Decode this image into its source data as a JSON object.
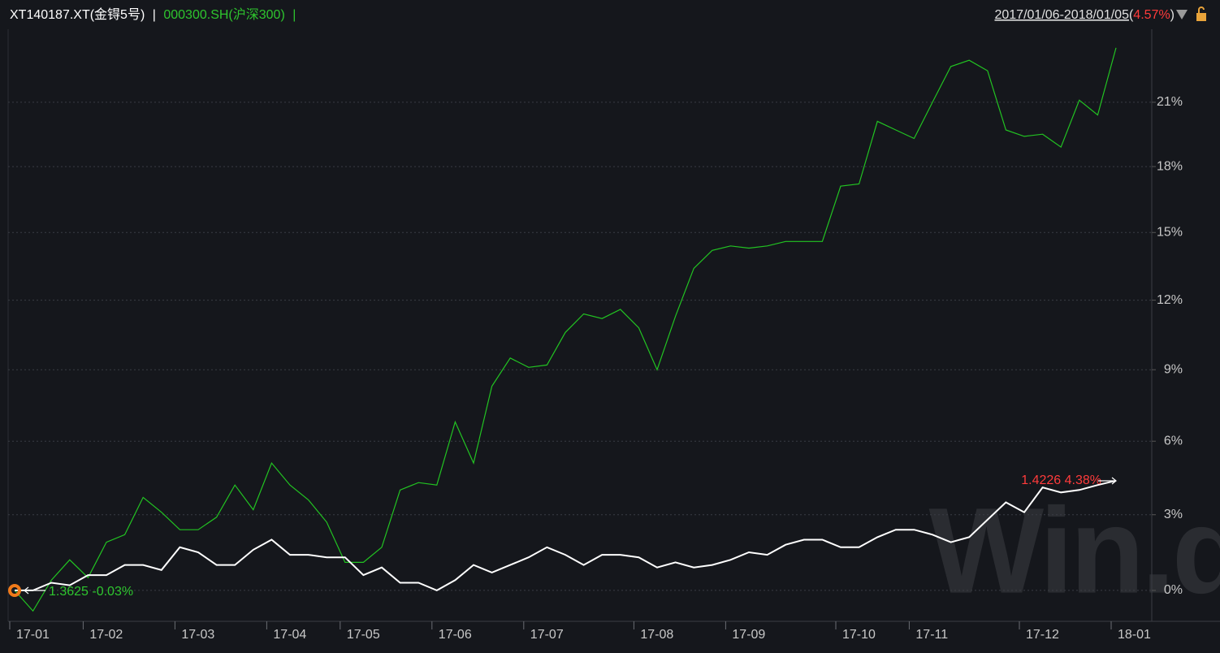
{
  "chart_data": {
    "type": "line",
    "separator": "|",
    "period": "2017/01/06-2018/01/05",
    "paren_open": "(",
    "paren_close": ")",
    "change": "4.57%",
    "watermark": "Win.d",
    "start_label": "1.3625 -0.03%",
    "end_label": "1.4226 4.38%",
    "log_scale": true,
    "grid": true,
    "categories": [
      "17-01",
      null,
      null,
      null,
      "17-02",
      null,
      null,
      null,
      null,
      "17-03",
      null,
      null,
      null,
      null,
      "17-04",
      null,
      null,
      null,
      "17-05",
      null,
      null,
      null,
      null,
      "17-06",
      null,
      null,
      null,
      null,
      "17-07",
      null,
      null,
      null,
      null,
      null,
      "17-08",
      null,
      null,
      null,
      null,
      "17-09",
      null,
      null,
      null,
      null,
      null,
      "17-10",
      null,
      null,
      null,
      "17-11",
      null,
      null,
      null,
      null,
      null,
      "17-12",
      null,
      null,
      null,
      null,
      "18-01"
    ],
    "series": [
      {
        "name": "XT140187.XT(金锝5号)",
        "color": "#ffffff",
        "values": [
          0,
          0.0,
          0.3,
          0.2,
          0.6,
          0.6,
          1.0,
          1.0,
          0.8,
          1.7,
          1.5,
          1.0,
          1.0,
          1.6,
          2.0,
          1.4,
          1.4,
          1.3,
          1.3,
          0.6,
          0.9,
          0.3,
          0.3,
          0.0,
          0.4,
          1.0,
          0.7,
          1.0,
          1.3,
          1.7,
          1.4,
          1.0,
          1.4,
          1.4,
          1.3,
          0.9,
          1.1,
          0.9,
          1.0,
          1.2,
          1.5,
          1.4,
          1.8,
          2.0,
          2.0,
          1.7,
          1.7,
          2.1,
          2.4,
          2.4,
          2.2,
          1.9,
          2.1,
          2.8,
          3.5,
          3.1,
          4.1,
          3.9,
          4.0,
          4.2,
          4.38
        ]
      },
      {
        "name": "000300.SH(沪深300)",
        "color": "#22c322",
        "values": [
          0,
          -0.8,
          0.4,
          1.2,
          0.5,
          1.9,
          2.2,
          3.7,
          3.1,
          2.4,
          2.4,
          2.9,
          4.2,
          3.2,
          5.1,
          4.2,
          3.6,
          2.7,
          1.1,
          1.1,
          1.7,
          4.0,
          4.3,
          4.2,
          6.8,
          5.1,
          8.3,
          9.5,
          9.1,
          9.2,
          10.6,
          11.4,
          11.2,
          11.6,
          10.8,
          9.0,
          11.3,
          13.4,
          14.2,
          14.4,
          14.3,
          14.4,
          14.6,
          14.6,
          14.6,
          17.1,
          17.2,
          20.1,
          19.7,
          19.3,
          21.0,
          22.7,
          23.0,
          22.5,
          19.7,
          19.4,
          19.5,
          18.9,
          21.1,
          20.4,
          23.6
        ]
      }
    ],
    "ylim": [
      -1.2,
      24.5
    ],
    "yticks": [
      {
        "value": 0,
        "label": "0%"
      },
      {
        "value": 3,
        "label": "3%"
      },
      {
        "value": 6,
        "label": "6%"
      },
      {
        "value": 9,
        "label": "9%"
      },
      {
        "value": 12,
        "label": "12%"
      },
      {
        "value": 15,
        "label": "15%"
      },
      {
        "value": 18,
        "label": "18%"
      },
      {
        "value": 21,
        "label": "21%"
      }
    ]
  }
}
